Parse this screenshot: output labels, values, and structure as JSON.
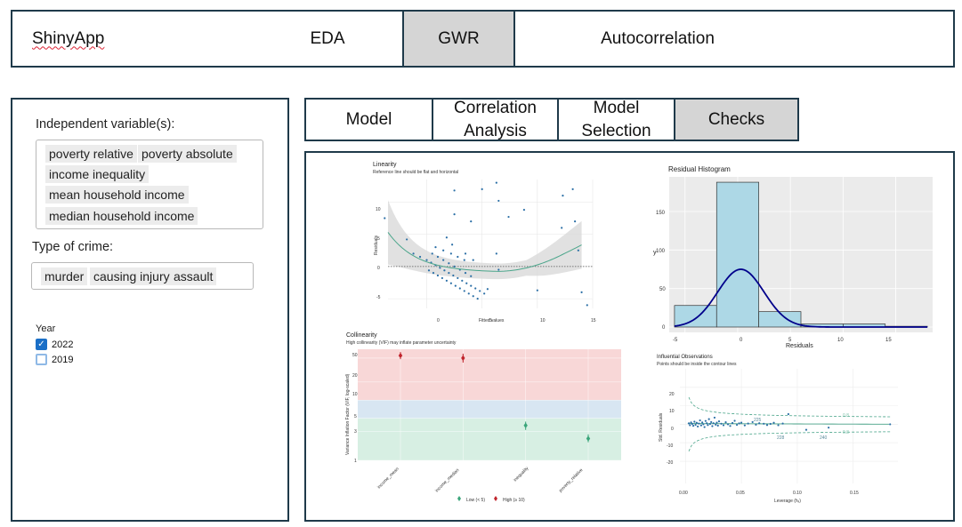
{
  "nav": {
    "brand": "ShinyApp",
    "tabs": [
      "EDA",
      "GWR",
      "Autocorrelation"
    ],
    "active": "GWR"
  },
  "sidebar": {
    "independent_label": "Independent variable(s):",
    "independent_chips": [
      "poverty relative",
      "poverty absolute",
      "income inequality",
      "mean household income",
      "median household income"
    ],
    "crime_label": "Type of crime:",
    "crime_chips": [
      "murder",
      "causing injury",
      "assault"
    ],
    "year_label": "Year",
    "years": [
      {
        "label": "2022",
        "checked": true
      },
      {
        "label": "2019",
        "checked": false
      }
    ]
  },
  "subtabs": {
    "model": "Model",
    "correlation": "Correlation Analysis",
    "selection": "Model Selection",
    "checks": "Checks",
    "active": "Checks"
  },
  "colors": {
    "nav_border": "#1f3a4a",
    "active_tab_bg": "#d5d5d5",
    "point_blue": "#2b6fa6",
    "smooth_green": "#4aa58a",
    "hist_fill": "#add8e6",
    "density_line": "#00008b",
    "vif_red": "#c0242c",
    "vif_green": "#3aa57a"
  },
  "panels": {
    "linearity": {
      "title": "Linearity",
      "subtitle": "Reference line should be flat and horizontal",
      "xlabel": "Fitted values",
      "ylabel": "Residuals",
      "xticks": [
        "0",
        "5",
        "10",
        "15"
      ],
      "yticks": [
        "10",
        "5",
        "0",
        "-5"
      ]
    },
    "histogram": {
      "title": "Residual Histogram",
      "xlabel": "Residuals",
      "ylabel": "y",
      "xticks": [
        "-5",
        "0",
        "5",
        "10",
        "15"
      ],
      "yticks": [
        "150",
        "100",
        "50",
        "0"
      ]
    },
    "collinearity": {
      "title": "Collinearity",
      "subtitle": "High collinearity (VIF) may inflate parameter uncertainty",
      "ylabel": "Variance Inflation Factor (VIF, log-scaled)",
      "yticks": [
        "50",
        "20",
        "10",
        "5",
        "3",
        "1"
      ],
      "categories": [
        "income_mean",
        "income_median",
        "inequality",
        "poverty_relative"
      ],
      "legend_low": "Low (< 5)",
      "legend_high": "High (≥ 10)"
    },
    "influential": {
      "title": "Influential Observations",
      "subtitle": "Points should be inside the contour lines",
      "xlabel": "Leverage (hᵢᵢ)",
      "ylabel": "Std. Residuals",
      "xticks": [
        "0.00",
        "0.05",
        "0.10",
        "0.15"
      ],
      "yticks": [
        "20",
        "10",
        "0",
        "-10",
        "-20"
      ],
      "point_labels": [
        "225",
        "228",
        "240"
      ],
      "contour_label": "0.8"
    }
  },
  "chart_data": [
    {
      "type": "scatter",
      "title": "Linearity",
      "subtitle": "Reference line should be flat and horizontal",
      "xlabel": "Fitted values",
      "ylabel": "Residuals",
      "xlim": [
        -3.5,
        15
      ],
      "ylim": [
        -6.5,
        13.5
      ],
      "points": [
        [
          -3.8,
          7.5
        ],
        [
          -1.8,
          4.2
        ],
        [
          -1.2,
          2.0
        ],
        [
          -0.6,
          1.5
        ],
        [
          0,
          1.0
        ],
        [
          0.4,
          0.6
        ],
        [
          0.8,
          0.2
        ],
        [
          1.2,
          -0.2
        ],
        [
          1.6,
          -0.6
        ],
        [
          2.0,
          -1.0
        ],
        [
          2.4,
          -1.4
        ],
        [
          2.8,
          -1.8
        ],
        [
          3.2,
          -2.2
        ],
        [
          3.6,
          -2.6
        ],
        [
          4.0,
          -3.0
        ],
        [
          4.4,
          -3.4
        ],
        [
          4.8,
          -3.8
        ],
        [
          5.2,
          -4.2
        ],
        [
          0.2,
          -0.6
        ],
        [
          0.6,
          -1.0
        ],
        [
          1.0,
          -1.4
        ],
        [
          1.4,
          -1.8
        ],
        [
          1.8,
          -2.2
        ],
        [
          2.2,
          -2.6
        ],
        [
          2.6,
          -3.0
        ],
        [
          3.0,
          -3.4
        ],
        [
          3.4,
          -3.8
        ],
        [
          3.8,
          -4.2
        ],
        [
          4.2,
          -4.6
        ],
        [
          4.6,
          -5.0
        ],
        [
          0.5,
          2.0
        ],
        [
          1.0,
          1.5
        ],
        [
          1.5,
          1.0
        ],
        [
          2.0,
          0.5
        ],
        [
          2.5,
          0.0
        ],
        [
          3.0,
          -0.5
        ],
        [
          3.5,
          -1.0
        ],
        [
          4.0,
          -1.5
        ],
        [
          0.8,
          3.0
        ],
        [
          1.5,
          2.5
        ],
        [
          2.2,
          2.0
        ],
        [
          2.8,
          1.5
        ],
        [
          3.4,
          1.0
        ],
        [
          1.8,
          4.5
        ],
        [
          2.3,
          3.4
        ],
        [
          2.5,
          8.1
        ],
        [
          2.5,
          11.8
        ],
        [
          3.5,
          2.0
        ],
        [
          4.2,
          1.0
        ],
        [
          4.0,
          7.0
        ],
        [
          5.0,
          12.0
        ],
        [
          6.3,
          13.0
        ],
        [
          6.3,
          2.0
        ],
        [
          6.5,
          10.2
        ],
        [
          6.5,
          -0.5
        ],
        [
          5.5,
          -3.5
        ],
        [
          7.4,
          7.7
        ],
        [
          8.8,
          8.8
        ],
        [
          10.0,
          -3.7
        ],
        [
          12.2,
          6.0
        ],
        [
          12.3,
          11.0
        ],
        [
          13.2,
          12.0
        ],
        [
          13.4,
          7.0
        ],
        [
          13.7,
          2.5
        ],
        [
          14.0,
          -4.0
        ],
        [
          14.5,
          -6.0
        ]
      ]
    },
    {
      "type": "bar",
      "title": "Residual Histogram",
      "xlabel": "Residuals",
      "ylabel": "y",
      "bins": [
        [
          -6,
          -2
        ],
        [
          -2,
          2
        ],
        [
          2,
          6
        ],
        [
          6,
          10
        ],
        [
          10,
          14
        ],
        [
          14,
          18
        ]
      ],
      "values": [
        28,
        188,
        20,
        4,
        4,
        1
      ],
      "xlim": [
        -6.5,
        18.5
      ],
      "ylim": [
        0,
        195
      ]
    },
    {
      "type": "scatter",
      "title": "Collinearity",
      "subtitle": "High collinearity (VIF) may inflate parameter uncertainty",
      "ylabel": "Variance Inflation Factor (VIF, log-scaled)",
      "log_y": true,
      "categories": [
        "income_mean",
        "income_median",
        "inequality",
        "poverty_relative"
      ],
      "values": [
        55,
        50,
        3.8,
        2.3
      ],
      "ci_low": [
        48,
        42,
        3.2,
        2.0
      ],
      "ci_high": [
        63,
        59,
        4.4,
        2.7
      ],
      "bands": {
        "low": [
          1,
          5
        ],
        "moderate": [
          5,
          10
        ],
        "high": [
          10,
          70
        ]
      }
    },
    {
      "type": "scatter",
      "title": "Influential Observations",
      "subtitle": "Points should be inside the contour lines",
      "xlabel": "Leverage (hᵢᵢ)",
      "ylabel": "Std. Residuals",
      "xlim": [
        -0.005,
        0.19
      ],
      "ylim": [
        -32,
        30
      ],
      "points": [
        [
          0.003,
          0.5
        ],
        [
          0.004,
          -0.5
        ],
        [
          0.005,
          1.0
        ],
        [
          0.006,
          0.2
        ],
        [
          0.007,
          -0.8
        ],
        [
          0.008,
          1.4
        ],
        [
          0.009,
          -0.3
        ],
        [
          0.01,
          0.8
        ],
        [
          0.011,
          -1.2
        ],
        [
          0.012,
          0.4
        ],
        [
          0.013,
          2.1
        ],
        [
          0.014,
          -0.6
        ],
        [
          0.015,
          1.0
        ],
        [
          0.016,
          0.0
        ],
        [
          0.017,
          -1.5
        ],
        [
          0.018,
          1.8
        ],
        [
          0.019,
          0.6
        ],
        [
          0.02,
          -0.4
        ],
        [
          0.021,
          2.8
        ],
        [
          0.022,
          0.2
        ],
        [
          0.023,
          1.2
        ],
        [
          0.024,
          -1.0
        ],
        [
          0.025,
          0.6
        ],
        [
          0.026,
          3.6
        ],
        [
          0.027,
          -0.2
        ],
        [
          0.028,
          0.9
        ],
        [
          0.029,
          -0.7
        ],
        [
          0.03,
          1.6
        ],
        [
          0.032,
          0.3
        ],
        [
          0.034,
          -0.5
        ],
        [
          0.036,
          1.1
        ],
        [
          0.038,
          0.0
        ],
        [
          0.04,
          -0.9
        ],
        [
          0.042,
          0.7
        ],
        [
          0.044,
          1.9
        ],
        [
          0.046,
          -0.3
        ],
        [
          0.048,
          0.5
        ],
        [
          0.05,
          0.9
        ],
        [
          0.053,
          -0.6
        ],
        [
          0.056,
          0.4
        ],
        [
          0.06,
          1.2
        ],
        [
          0.063,
          -0.2
        ],
        [
          0.066,
          0.6
        ],
        [
          0.07,
          0.3
        ],
        [
          0.073,
          -0.4
        ],
        [
          0.076,
          0.2
        ],
        [
          0.079,
          0.8
        ],
        [
          0.083,
          -0.5
        ],
        [
          0.087,
          0.4
        ],
        [
          0.092,
          5.5
        ],
        [
          0.108,
          -3.0
        ],
        [
          0.128,
          -1.8
        ],
        [
          0.183,
          0.0
        ]
      ]
    }
  ]
}
